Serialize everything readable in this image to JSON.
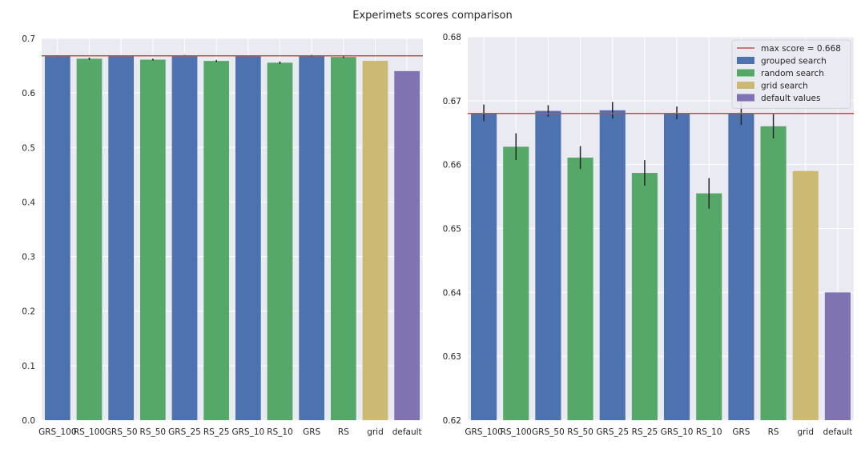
{
  "figure_title": "Experimets scores comparison",
  "colors": {
    "plot_bg": "#eaeaf2",
    "grid": "#ffffff",
    "max_line": "#c44e52",
    "error_bar": "#262626",
    "grouped search": "#4c72b0",
    "random search": "#55a868",
    "grid search": "#ccb974",
    "default values": "#8172b2"
  },
  "chart_data": [
    {
      "type": "bar",
      "categories": [
        "GRS_100",
        "RS_100",
        "GRS_50",
        "RS_50",
        "GRS_25",
        "RS_25",
        "GRS_10",
        "RS_10",
        "GRS",
        "RS",
        "grid",
        "default"
      ],
      "groups": [
        "grouped search",
        "random search",
        "grouped search",
        "random search",
        "grouped search",
        "random search",
        "grouped search",
        "random search",
        "grouped search",
        "random search",
        "grid search",
        "default values"
      ],
      "values": [
        0.6681,
        0.6628,
        0.6684,
        0.6611,
        0.6685,
        0.6587,
        0.6681,
        0.6555,
        0.6681,
        0.666,
        0.659,
        0.64
      ],
      "errors": [
        0.0013,
        0.0021,
        0.0009,
        0.0018,
        0.0013,
        0.002,
        0.001,
        0.0024,
        0.0019,
        0.0019,
        0,
        0
      ],
      "max_line": 0.668,
      "ylim": [
        0,
        0.7
      ],
      "yticks": [
        "0.0",
        "0.1",
        "0.2",
        "0.3",
        "0.4",
        "0.5",
        "0.6",
        "0.7"
      ],
      "title": "",
      "xlabel": "",
      "ylabel": "",
      "grid": true
    },
    {
      "type": "bar",
      "categories": [
        "GRS_100",
        "RS_100",
        "GRS_50",
        "RS_50",
        "GRS_25",
        "RS_25",
        "GRS_10",
        "RS_10",
        "GRS",
        "RS",
        "grid",
        "default"
      ],
      "groups": [
        "grouped search",
        "random search",
        "grouped search",
        "random search",
        "grouped search",
        "random search",
        "grouped search",
        "random search",
        "grouped search",
        "random search",
        "grid search",
        "default values"
      ],
      "values": [
        0.6681,
        0.6628,
        0.6684,
        0.6611,
        0.6685,
        0.6587,
        0.6681,
        0.6555,
        0.6681,
        0.666,
        0.659,
        0.64
      ],
      "errors": [
        0.0013,
        0.0021,
        0.0009,
        0.0018,
        0.0013,
        0.002,
        0.001,
        0.0024,
        0.0019,
        0.0019,
        0,
        0
      ],
      "max_line": 0.668,
      "ylim": [
        0.62,
        0.68
      ],
      "yticks": [
        "0.62",
        "0.63",
        "0.64",
        "0.65",
        "0.66",
        "0.67",
        "0.68"
      ],
      "title": "",
      "xlabel": "",
      "ylabel": "",
      "grid": true,
      "legend": {
        "placement": "top-right",
        "entries": [
          {
            "label": "max score = 0.668",
            "kind": "line",
            "color_key": "max_line"
          },
          {
            "label": "grouped search",
            "kind": "patch",
            "color_key": "grouped search"
          },
          {
            "label": "random search",
            "kind": "patch",
            "color_key": "random search"
          },
          {
            "label": "grid search",
            "kind": "patch",
            "color_key": "grid search"
          },
          {
            "label": "default values",
            "kind": "patch",
            "color_key": "default values"
          }
        ]
      }
    }
  ]
}
